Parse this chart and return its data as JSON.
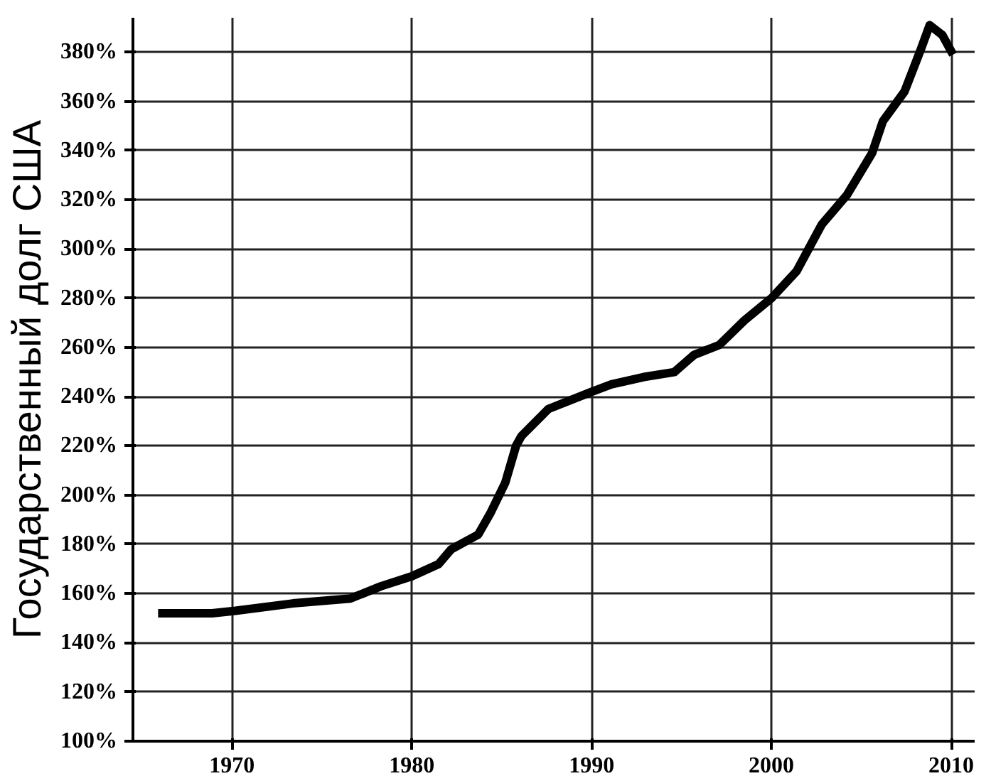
{
  "chart_data": {
    "type": "line",
    "ylabel": "Государственный долг США",
    "x": [
      1965.9,
      1968.9,
      1970.2,
      1973.4,
      1976.6,
      1978.3,
      1980,
      1981.5,
      1982.2,
      1983.7,
      1984.4,
      1985.2,
      1985.8,
      1986.1,
      1987.6,
      1990,
      1991.1,
      1992.9,
      1994.6,
      1995.7,
      1997.1,
      1998.5,
      2000,
      2001.4,
      2002.8,
      2004.2,
      2005.6,
      2006.2,
      2007.4,
      2008.3,
      2008.8,
      2009.5,
      2010.1
    ],
    "series": [
      {
        "color": "#000000",
        "values": [
          152,
          152,
          153,
          156,
          158,
          163,
          167,
          172,
          178,
          184,
          193,
          205,
          220,
          224,
          235,
          242,
          245,
          248,
          250,
          257,
          261,
          271,
          280,
          291,
          310,
          322,
          339,
          352,
          364,
          381,
          391,
          387,
          379
        ]
      }
    ],
    "xlim": [
      1964.5,
      2011.3
    ],
    "ylim": [
      100,
      394
    ],
    "xticks": [
      1970,
      1980,
      1990,
      2000,
      2010
    ],
    "yticks": [
      {
        "value": 100,
        "label": "100%"
      },
      {
        "value": 120,
        "label": "120%"
      },
      {
        "value": 140,
        "label": "140%"
      },
      {
        "value": 160,
        "label": "160%"
      },
      {
        "value": 180,
        "label": "180%"
      },
      {
        "value": 200,
        "label": "200%"
      },
      {
        "value": 220,
        "label": "220%"
      },
      {
        "value": 240,
        "label": "240%"
      },
      {
        "value": 260,
        "label": "260%"
      },
      {
        "value": 280,
        "label": "280%"
      },
      {
        "value": 300,
        "label": "300%"
      },
      {
        "value": 320,
        "label": "320%"
      },
      {
        "value": 340,
        "label": "340%"
      },
      {
        "value": 360,
        "label": "360%"
      },
      {
        "value": 380,
        "label": "380%"
      }
    ],
    "grid": true,
    "marker": "none",
    "line_style": "solid"
  }
}
